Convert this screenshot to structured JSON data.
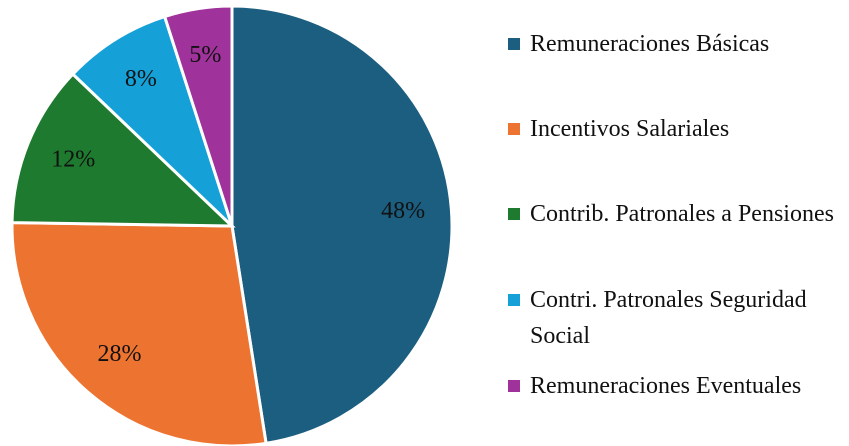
{
  "chart_data": {
    "type": "pie",
    "categories": [
      "Remuneraciones Básicas",
      "Incentivos Salariales",
      "Contrib. Patronales a Pensiones",
      "Contri. Patronales Seguridad Social",
      "Remuneraciones Eventuales"
    ],
    "values": [
      48,
      28,
      12,
      8,
      5
    ],
    "value_labels": [
      "48%",
      "28%",
      "12%",
      "8%",
      "5%"
    ],
    "colors": [
      "#1b5e80",
      "#ed7331",
      "#1e7a2e",
      "#15a1d8",
      "#a0339b"
    ],
    "legend": "right"
  }
}
